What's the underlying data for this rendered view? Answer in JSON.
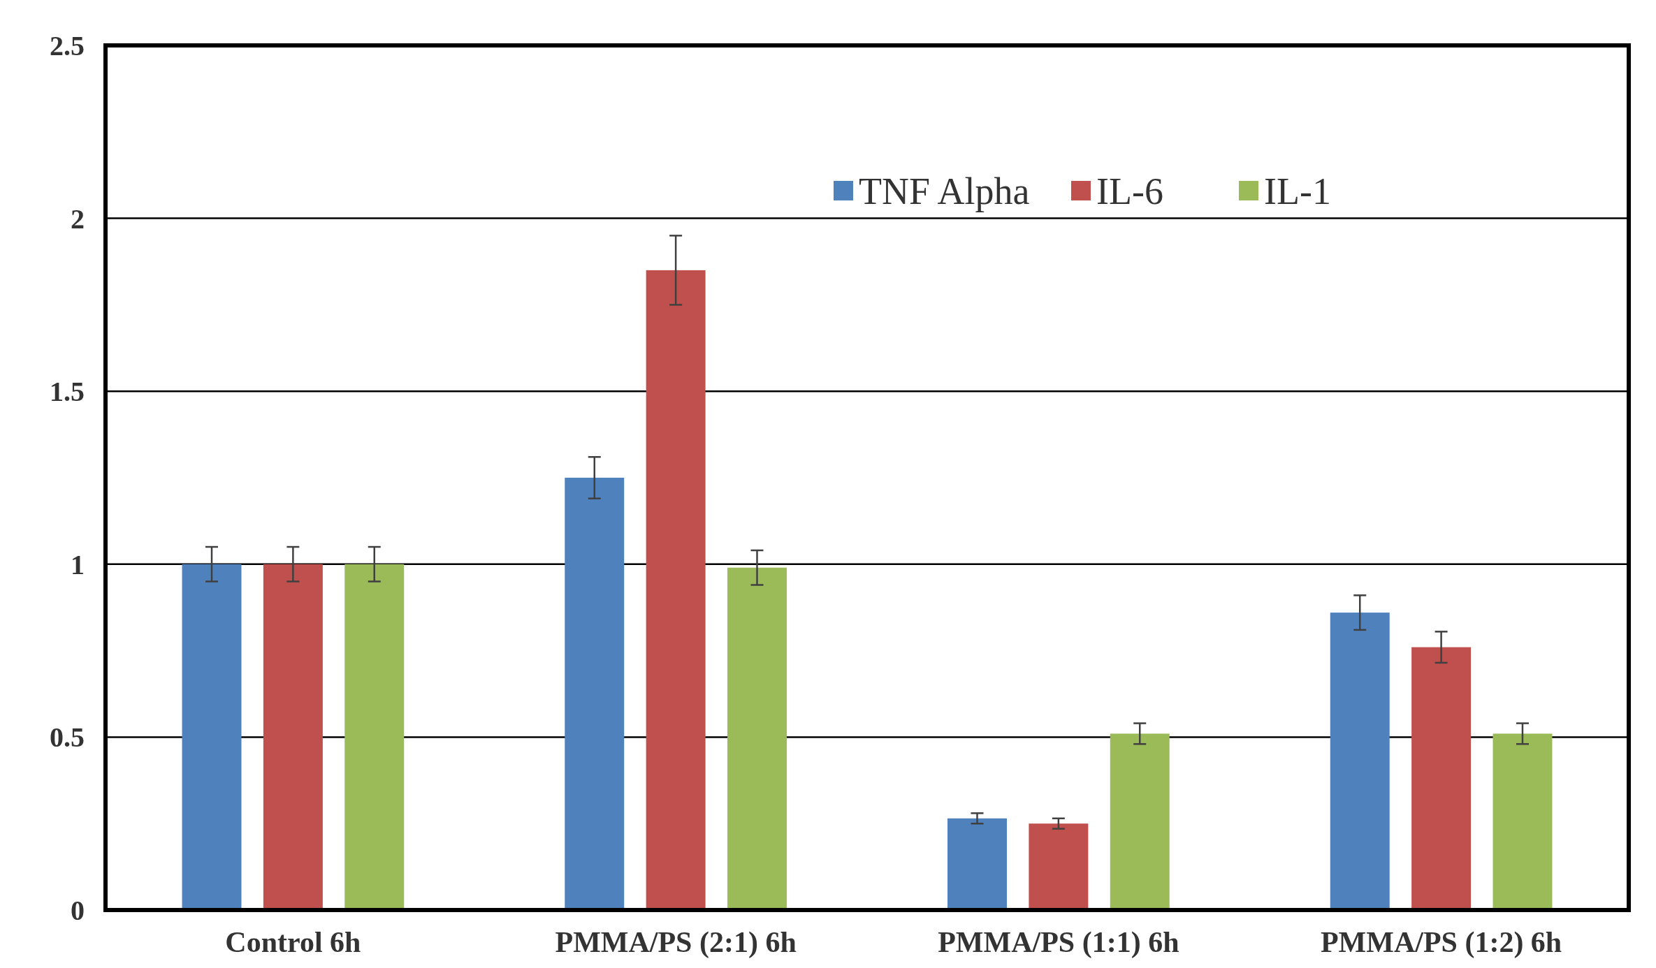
{
  "chart_data": {
    "type": "bar",
    "categories": [
      "Control 6h",
      "PMMA/PS (2:1) 6h",
      "PMMA/PS (1:1) 6h",
      "PMMA/PS (1:2) 6h"
    ],
    "series": [
      {
        "name": "TNF Alpha",
        "color": "#4f81bd",
        "values": [
          1,
          1.25,
          0.265,
          0.86
        ],
        "errors": [
          0.05,
          0.06,
          0.015,
          0.05
        ]
      },
      {
        "name": "IL-6",
        "color": "#c0504d",
        "values": [
          1,
          1.85,
          0.25,
          0.76
        ],
        "errors": [
          0.05,
          0.1,
          0.015,
          0.045
        ]
      },
      {
        "name": "IL-1",
        "color": "#9bbb59",
        "values": [
          1,
          0.99,
          0.51,
          0.51
        ],
        "errors": [
          0.05,
          0.05,
          0.03,
          0.03
        ]
      }
    ],
    "ylim": [
      0,
      2.5
    ],
    "yticks": [
      0,
      0.5,
      1,
      1.5,
      2,
      2.5
    ],
    "grid": "y",
    "legend": "top right"
  }
}
